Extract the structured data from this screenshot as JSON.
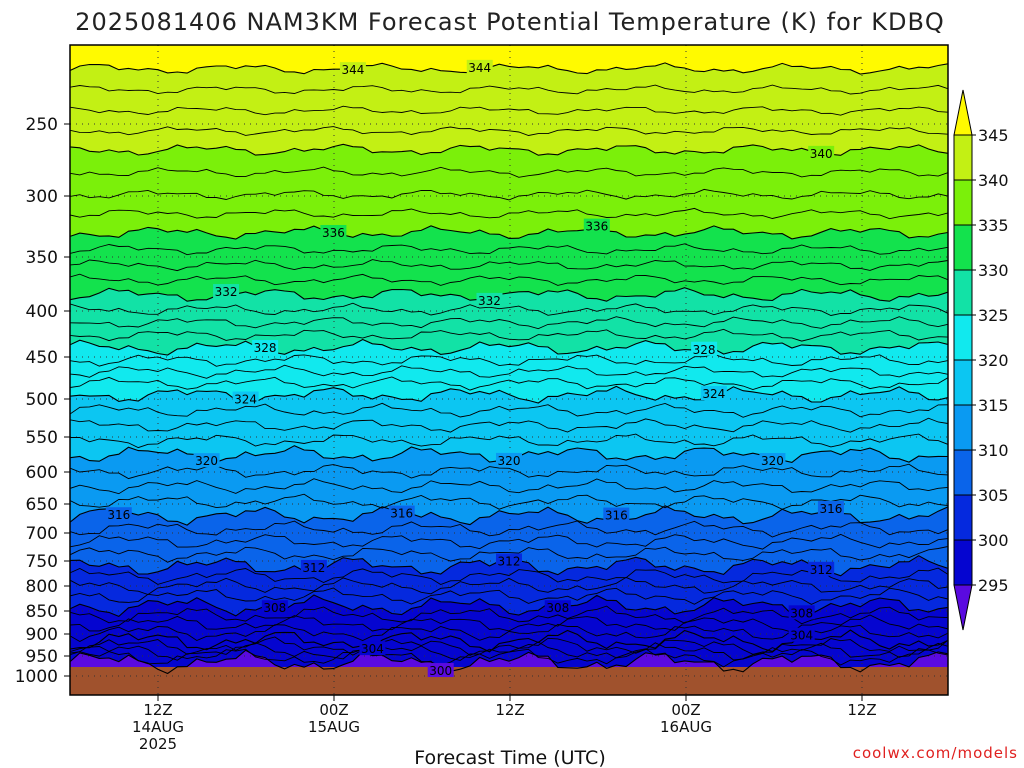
{
  "chart_data": {
    "type": "heatmap",
    "title": "2025081406 NAM3KM Forecast Potential Temperature (K) for KDBQ",
    "xlabel": "Forecast Time (UTC)",
    "credit": "coolwx.com/models",
    "y_ticks": [
      "250",
      "300",
      "350",
      "400",
      "450",
      "500",
      "550",
      "600",
      "650",
      "700",
      "750",
      "800",
      "850",
      "900",
      "950",
      "1000"
    ],
    "x_ticks": [
      {
        "line1": "12Z",
        "line2": "14AUG",
        "line3": "2025"
      },
      {
        "line1": "00Z",
        "line2": "15AUG",
        "line3": ""
      },
      {
        "line1": "12Z",
        "line2": "",
        "line3": ""
      },
      {
        "line1": "00Z",
        "line2": "16AUG",
        "line3": ""
      },
      {
        "line1": "12Z",
        "line2": "",
        "line3": ""
      }
    ],
    "colorbar_ticks": [
      "345",
      "340",
      "335",
      "330",
      "325",
      "320",
      "315",
      "310",
      "305",
      "300",
      "295"
    ],
    "colorbar_colors": [
      "#fffa00",
      "#c3f014",
      "#7bf00a",
      "#13e24d",
      "#12e2a6",
      "#11e9ee",
      "#0cc6f2",
      "#0a9af2",
      "#0a64ea",
      "#0529de",
      "#0505d0",
      "#5a0ae0"
    ],
    "contour_levels": [
      {
        "value": "344",
        "pressure": 215
      },
      {
        "value": "340",
        "pressure": 268
      },
      {
        "value": "336",
        "pressure": 330
      },
      {
        "value": "332",
        "pressure": 385
      },
      {
        "value": "328",
        "pressure": 440
      },
      {
        "value": "324",
        "pressure": 495
      },
      {
        "value": "320",
        "pressure": 575
      },
      {
        "value": "316",
        "pressure": 670
      },
      {
        "value": "312",
        "pressure": 760
      },
      {
        "value": "308",
        "pressure": 840
      },
      {
        "value": "304",
        "pressure": 915
      },
      {
        "value": "300",
        "pressure": 965
      }
    ],
    "contour_label_positions": [
      {
        "text": "344",
        "col": 0.32,
        "lvl": 0
      },
      {
        "text": "344",
        "col": 0.47,
        "lvl": 0
      },
      {
        "text": "340",
        "col": 0.85,
        "lvl": 1
      },
      {
        "text": "336",
        "col": 0.3,
        "lvl": 2
      },
      {
        "text": "336",
        "col": 0.6,
        "lvl": 2
      },
      {
        "text": "332",
        "col": 0.18,
        "lvl": 3
      },
      {
        "text": "332",
        "col": 0.48,
        "lvl": 3
      },
      {
        "text": "328",
        "col": 0.22,
        "lvl": 4
      },
      {
        "text": "328",
        "col": 0.72,
        "lvl": 4
      },
      {
        "text": "324",
        "col": 0.2,
        "lvl": 5
      },
      {
        "text": "324",
        "col": 0.73,
        "lvl": 5
      },
      {
        "text": "320",
        "col": 0.15,
        "lvl": 6
      },
      {
        "text": "320",
        "col": 0.5,
        "lvl": 6
      },
      {
        "text": "320",
        "col": 0.8,
        "lvl": 6
      },
      {
        "text": "316",
        "col": 0.05,
        "lvl": 7
      },
      {
        "text": "316",
        "col": 0.38,
        "lvl": 7
      },
      {
        "text": "316",
        "col": 0.62,
        "lvl": 7
      },
      {
        "text": "316",
        "col": 0.87,
        "lvl": 7
      },
      {
        "text": "312",
        "col": 0.28,
        "lvl": 8
      },
      {
        "text": "312",
        "col": 0.5,
        "lvl": 8
      },
      {
        "text": "312",
        "col": 0.85,
        "lvl": 8
      },
      {
        "text": "308",
        "col": 0.23,
        "lvl": 9
      },
      {
        "text": "308",
        "col": 0.55,
        "lvl": 9
      },
      {
        "text": "308",
        "col": 0.83,
        "lvl": 9
      },
      {
        "text": "304",
        "col": 0.35,
        "lvl": 10
      },
      {
        "text": "304",
        "col": 0.83,
        "lvl": 10
      },
      {
        "text": "300",
        "col": 0.42,
        "lvl": 11
      }
    ]
  }
}
